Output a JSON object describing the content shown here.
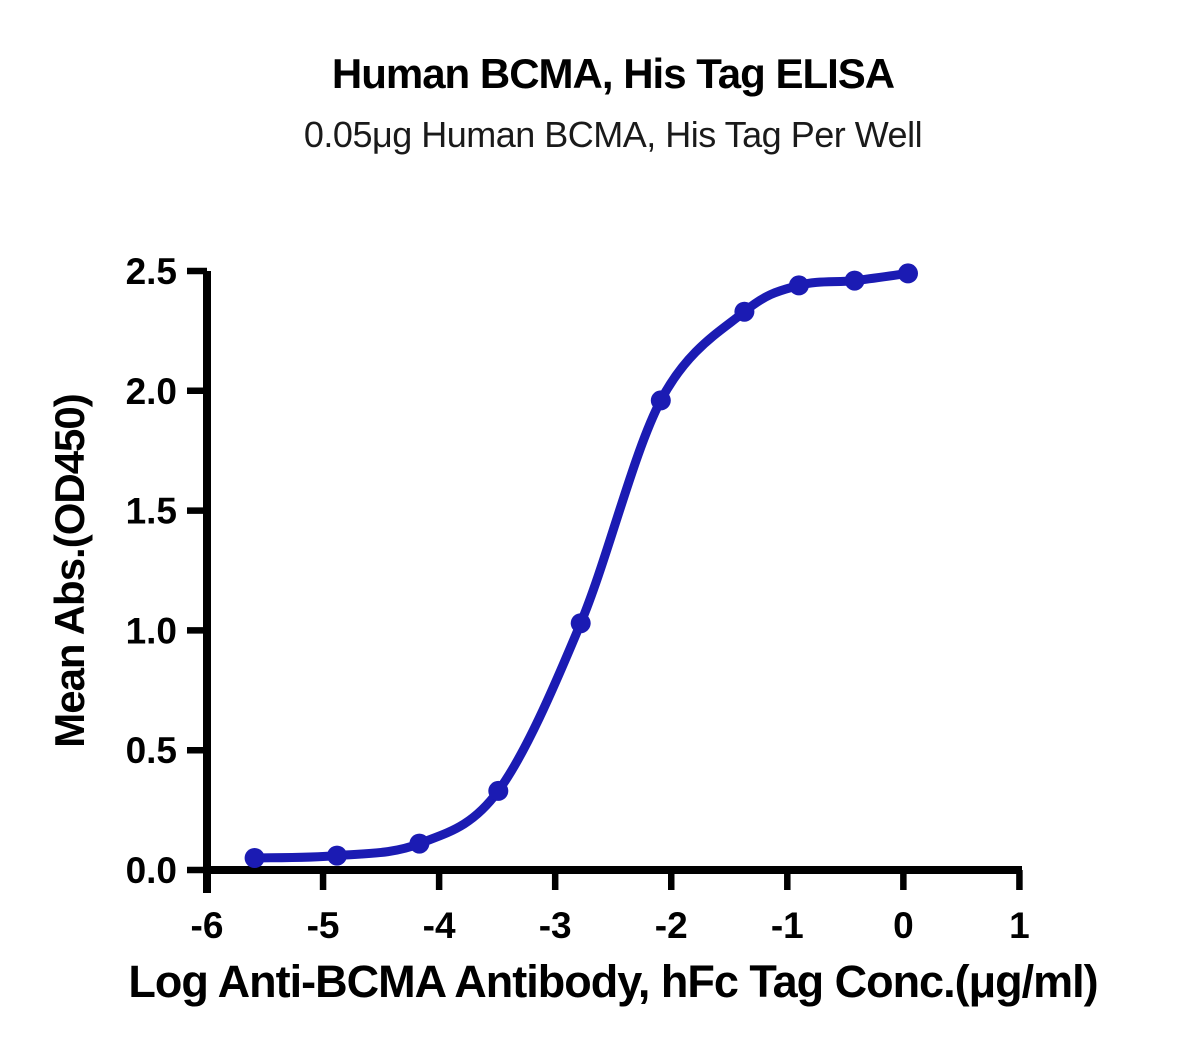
{
  "chart_data": {
    "type": "line",
    "title": "Human BCMA, His Tag ELISA",
    "subtitle": "0.05μg Human BCMA, His Tag Per Well",
    "xlabel": "Log Anti-BCMA Antibody, hFc Tag Conc.(μg/ml)",
    "ylabel": "Mean Abs.(OD450)",
    "xlim": [
      -6,
      1
    ],
    "ylim": [
      0,
      2.5
    ],
    "x_ticks": [
      -6,
      -5,
      -4,
      -3,
      -2,
      -1,
      0,
      1
    ],
    "x_tick_labels": [
      "-6",
      "-5",
      "-4",
      "-3",
      "-2",
      "-1",
      "0",
      "1"
    ],
    "y_ticks": [
      0,
      0.5,
      1,
      1.5,
      2,
      2.5
    ],
    "y_tick_labels": [
      "0.0",
      "0.5",
      "1.0",
      "1.5",
      "2.0",
      "2.5"
    ],
    "grid": false,
    "legend": false,
    "series": [
      {
        "marker": "circle",
        "line": "smooth-sigmoid",
        "color": "#1b1bb3",
        "x": [
          -5.59,
          -4.88,
          -4.17,
          -3.49,
          -2.78,
          -2.09,
          -1.37,
          -0.9,
          -0.42,
          0.04
        ],
        "y": [
          0.05,
          0.06,
          0.11,
          0.33,
          1.03,
          1.96,
          2.33,
          2.44,
          2.46,
          2.49
        ]
      }
    ]
  },
  "colors": {
    "curve": "#1b1bb3",
    "axis": "#000000",
    "background": "#ffffff"
  }
}
